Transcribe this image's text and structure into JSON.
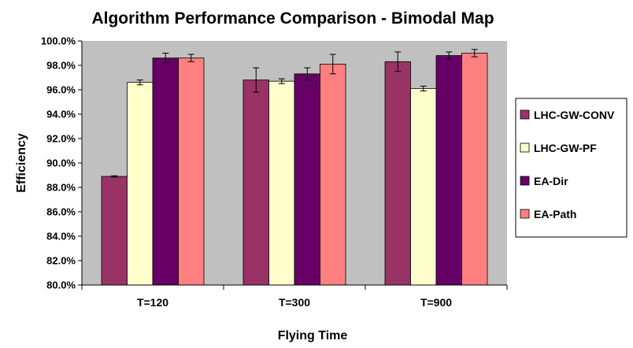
{
  "chart_data": {
    "type": "bar",
    "title": "Algorithm Performance Comparison - Bimodal Map",
    "xlabel": "Flying Time",
    "ylabel": "Efficiency",
    "categories": [
      "T=120",
      "T=300",
      "T=900"
    ],
    "ylim": [
      80.0,
      100.0
    ],
    "yticks": [
      "80.0%",
      "82.0%",
      "84.0%",
      "86.0%",
      "88.0%",
      "90.0%",
      "92.0%",
      "94.0%",
      "96.0%",
      "98.0%",
      "100.0%"
    ],
    "grid": false,
    "legend_position": "right",
    "plot_background": "#c0c0c0",
    "series": [
      {
        "name": "LHC-GW-CONV",
        "color": "#993366",
        "values": [
          88.9,
          96.8,
          98.3
        ],
        "errors": [
          0.05,
          1.0,
          0.8
        ]
      },
      {
        "name": "LHC-GW-PF",
        "color": "#ffffcc",
        "values": [
          96.6,
          96.7,
          96.1
        ],
        "errors": [
          0.2,
          0.2,
          0.2
        ]
      },
      {
        "name": "EA-Dir",
        "color": "#660066",
        "values": [
          98.6,
          97.3,
          98.8
        ],
        "errors": [
          0.4,
          0.5,
          0.3
        ]
      },
      {
        "name": "EA-Path",
        "color": "#ff8080",
        "values": [
          98.6,
          98.1,
          99.0
        ],
        "errors": [
          0.3,
          0.8,
          0.3
        ]
      }
    ]
  }
}
